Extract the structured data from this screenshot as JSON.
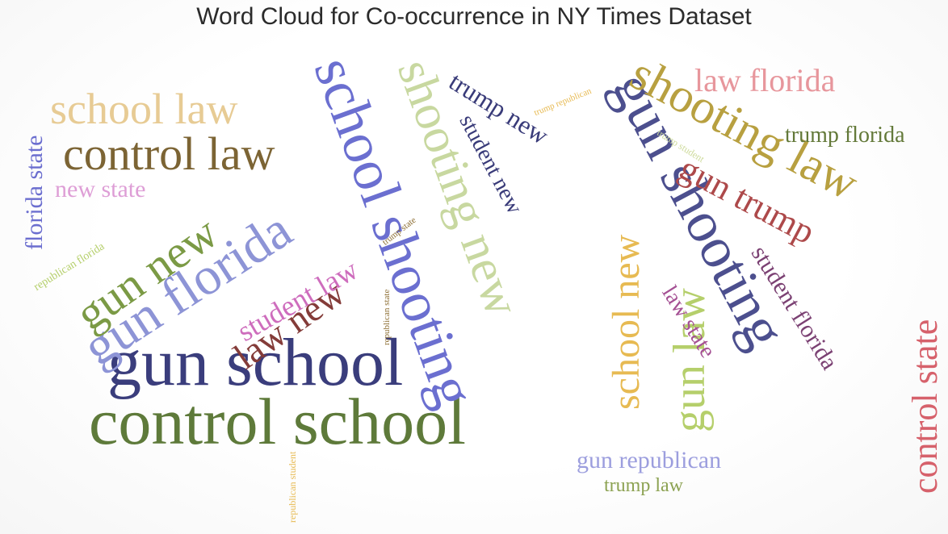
{
  "title": "Word Cloud for Co-occurrence in NY Times Dataset",
  "words": [
    {
      "text": "gun school",
      "color": "#3a3d7c",
      "size": 0.95
    },
    {
      "text": "control school",
      "color": "#5e7a3a",
      "size": 0.9
    },
    {
      "text": "school shooting",
      "color": "#6b6fd0",
      "size": 0.88
    },
    {
      "text": "gun shooting",
      "color": "#4c4f8e",
      "size": 0.86
    },
    {
      "text": "shooting new",
      "color": "#c8d8a0",
      "size": 0.8
    },
    {
      "text": "shooting law",
      "color": "#b8a040",
      "size": 0.8
    },
    {
      "text": "gun florida",
      "color": "#8d94d6",
      "size": 0.8
    },
    {
      "text": "control law",
      "color": "#7c6434",
      "size": 0.7
    },
    {
      "text": "gun new",
      "color": "#7b9a45",
      "size": 0.72
    },
    {
      "text": "gun law",
      "color": "#b5cf6b",
      "size": 0.7
    },
    {
      "text": "school law",
      "color": "#e7cb94",
      "size": 0.65
    },
    {
      "text": "school new",
      "color": "#e7ba52",
      "size": 0.62
    },
    {
      "text": "control state",
      "color": "#d6616b",
      "size": 0.62
    },
    {
      "text": "gun trump",
      "color": "#ad494a",
      "size": 0.6
    },
    {
      "text": "law new",
      "color": "#843c39",
      "size": 0.55
    },
    {
      "text": "law florida",
      "color": "#e7969c",
      "size": 0.5
    },
    {
      "text": "student law",
      "color": "#ce6dbd",
      "size": 0.45
    },
    {
      "text": "student florida",
      "color": "#7b4173",
      "size": 0.45
    },
    {
      "text": "trump new",
      "color": "#393b79",
      "size": 0.42
    },
    {
      "text": "student new",
      "color": "#393b79",
      "size": 0.4
    },
    {
      "text": "law state",
      "color": "#a55194",
      "size": 0.4
    },
    {
      "text": "gun republican",
      "color": "#9c9ede",
      "size": 0.4
    },
    {
      "text": "florida state",
      "color": "#6b6ecf",
      "size": 0.4
    },
    {
      "text": "new state",
      "color": "#de9ed6",
      "size": 0.4
    },
    {
      "text": "trump florida",
      "color": "#637939",
      "size": 0.38
    },
    {
      "text": "trump law",
      "color": "#8ca252",
      "size": 0.34
    },
    {
      "text": "republican florida",
      "color": "#b5cf6b",
      "size": 0.2
    },
    {
      "text": "trump state",
      "color": "#8c6d31",
      "size": 0.15
    },
    {
      "text": "trump republican",
      "color": "#e7ba52",
      "size": 0.15
    },
    {
      "text": "trump student",
      "color": "#cedb9c",
      "size": 0.15
    },
    {
      "text": "republican state",
      "color": "#8c6d31",
      "size": 0.15
    },
    {
      "text": "republican student",
      "color": "#e7ba52",
      "size": 0.15
    }
  ]
}
